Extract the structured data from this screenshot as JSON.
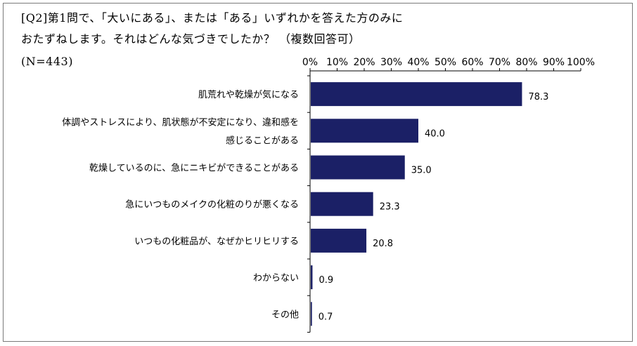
{
  "title_lines": [
    "[Q2]第1問で、「大いにある」、または「ある」いずれかを答えた方のみに",
    "おたずねします。それはどんな気づきでしたか？ （複数回答可）"
  ],
  "sample_note": "(N=443)",
  "colors": {
    "bar": "#1b2066",
    "axis": "#000000",
    "frame": "#7a7a7a"
  },
  "chart_data": {
    "type": "bar",
    "orientation": "horizontal",
    "categories": [
      [
        "肌荒れや乾燥が気になる"
      ],
      [
        "体調やストレスにより、肌状態が不安定になり、違和感を",
        "感じることがある"
      ],
      [
        "乾燥しているのに、急にニキビができることがある"
      ],
      [
        "急にいつものメイクの化粧のりが悪くなる"
      ],
      [
        "いつもの化粧品が、なぜかヒリヒリする"
      ],
      [
        "わからない"
      ],
      [
        "その他"
      ]
    ],
    "values": [
      78.3,
      40.0,
      35.0,
      23.3,
      20.8,
      0.9,
      0.7
    ],
    "value_labels": [
      "78.3",
      "40.0",
      "35.0",
      "23.3",
      "20.8",
      "0.9",
      "0.7"
    ],
    "xlim": [
      0,
      100
    ],
    "x_ticks": [
      "0%",
      "10%",
      "20%",
      "30%",
      "40%",
      "50%",
      "60%",
      "70%",
      "80%",
      "90%",
      "100%"
    ],
    "x_axis_position": "top",
    "grid": false,
    "legend": "none"
  }
}
